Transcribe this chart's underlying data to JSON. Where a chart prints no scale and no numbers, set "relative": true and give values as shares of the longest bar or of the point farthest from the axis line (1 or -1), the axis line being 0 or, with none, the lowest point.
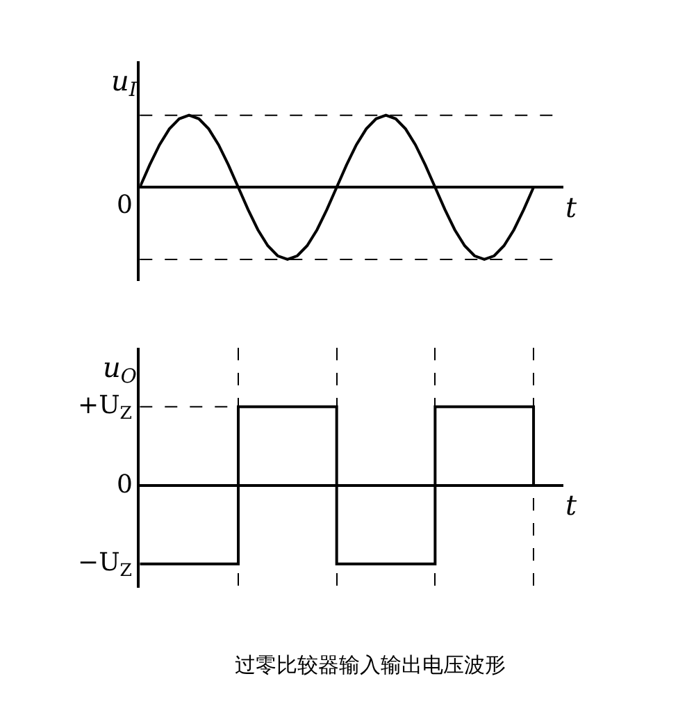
{
  "chart_data": [
    {
      "type": "line",
      "relative": true,
      "ylabel": "u$_{I}$",
      "xlabel": "t",
      "categories": [
        null,
        null,
        null,
        null,
        null,
        null,
        null,
        null,
        null,
        null,
        null,
        null,
        null,
        null,
        null,
        null,
        null,
        null,
        null,
        null,
        null,
        null,
        null,
        null,
        null,
        null,
        null,
        null,
        null,
        null,
        null,
        null,
        null,
        null,
        null,
        null,
        null,
        null,
        null,
        null,
        null
      ],
      "series": [
        {
          "color": "#000000",
          "values": [
            0,
            0.31,
            0.59,
            0.81,
            0.95,
            1,
            0.95,
            0.81,
            0.59,
            0.31,
            0,
            -0.31,
            -0.59,
            -0.81,
            -0.95,
            -1,
            -0.95,
            -0.81,
            -0.59,
            -0.31,
            0,
            0.31,
            0.59,
            0.81,
            0.95,
            1,
            0.95,
            0.81,
            0.59,
            0.31,
            0,
            -0.31,
            -0.59,
            -0.81,
            -0.95,
            -1,
            -0.95,
            -0.81,
            -0.59,
            -0.31,
            0
          ]
        }
      ],
      "ref_lines": [
        {
          "axis": "y",
          "value": 1,
          "line_style": "dashed"
        },
        {
          "axis": "y",
          "value": -1,
          "line_style": "dashed"
        }
      ],
      "annotations": [
        "0"
      ],
      "grid": false,
      "legend": false,
      "tick_labels": false
    },
    {
      "type": "step",
      "ylabel": "u$_{O}$",
      "xlabel": "t",
      "categories": [
        null,
        null,
        null,
        null,
        null,
        null,
        null,
        null,
        null,
        null,
        null,
        null,
        null,
        null,
        null,
        null,
        null,
        null,
        null,
        null,
        null,
        null,
        null,
        null,
        null,
        null,
        null,
        null,
        null,
        null,
        null,
        null,
        null,
        null,
        null,
        null,
        null,
        null,
        null,
        null,
        null
      ],
      "series": [
        {
          "color": "#000000",
          "values": [
            -1,
            -1,
            -1,
            -1,
            -1,
            -1,
            -1,
            -1,
            -1,
            -1,
            1,
            1,
            1,
            1,
            1,
            1,
            1,
            1,
            1,
            1,
            -1,
            -1,
            -1,
            -1,
            -1,
            -1,
            -1,
            -1,
            -1,
            -1,
            1,
            1,
            1,
            1,
            1,
            1,
            1,
            1,
            1,
            1,
            0
          ]
        }
      ],
      "relative": true,
      "annotations": [
        "+U$_{Z}$",
        "0",
        "−U$_{Z}$",
        "过零比较器输入输出电压波形"
      ],
      "grid": "x",
      "legend": false,
      "tick_labels": false
    }
  ]
}
